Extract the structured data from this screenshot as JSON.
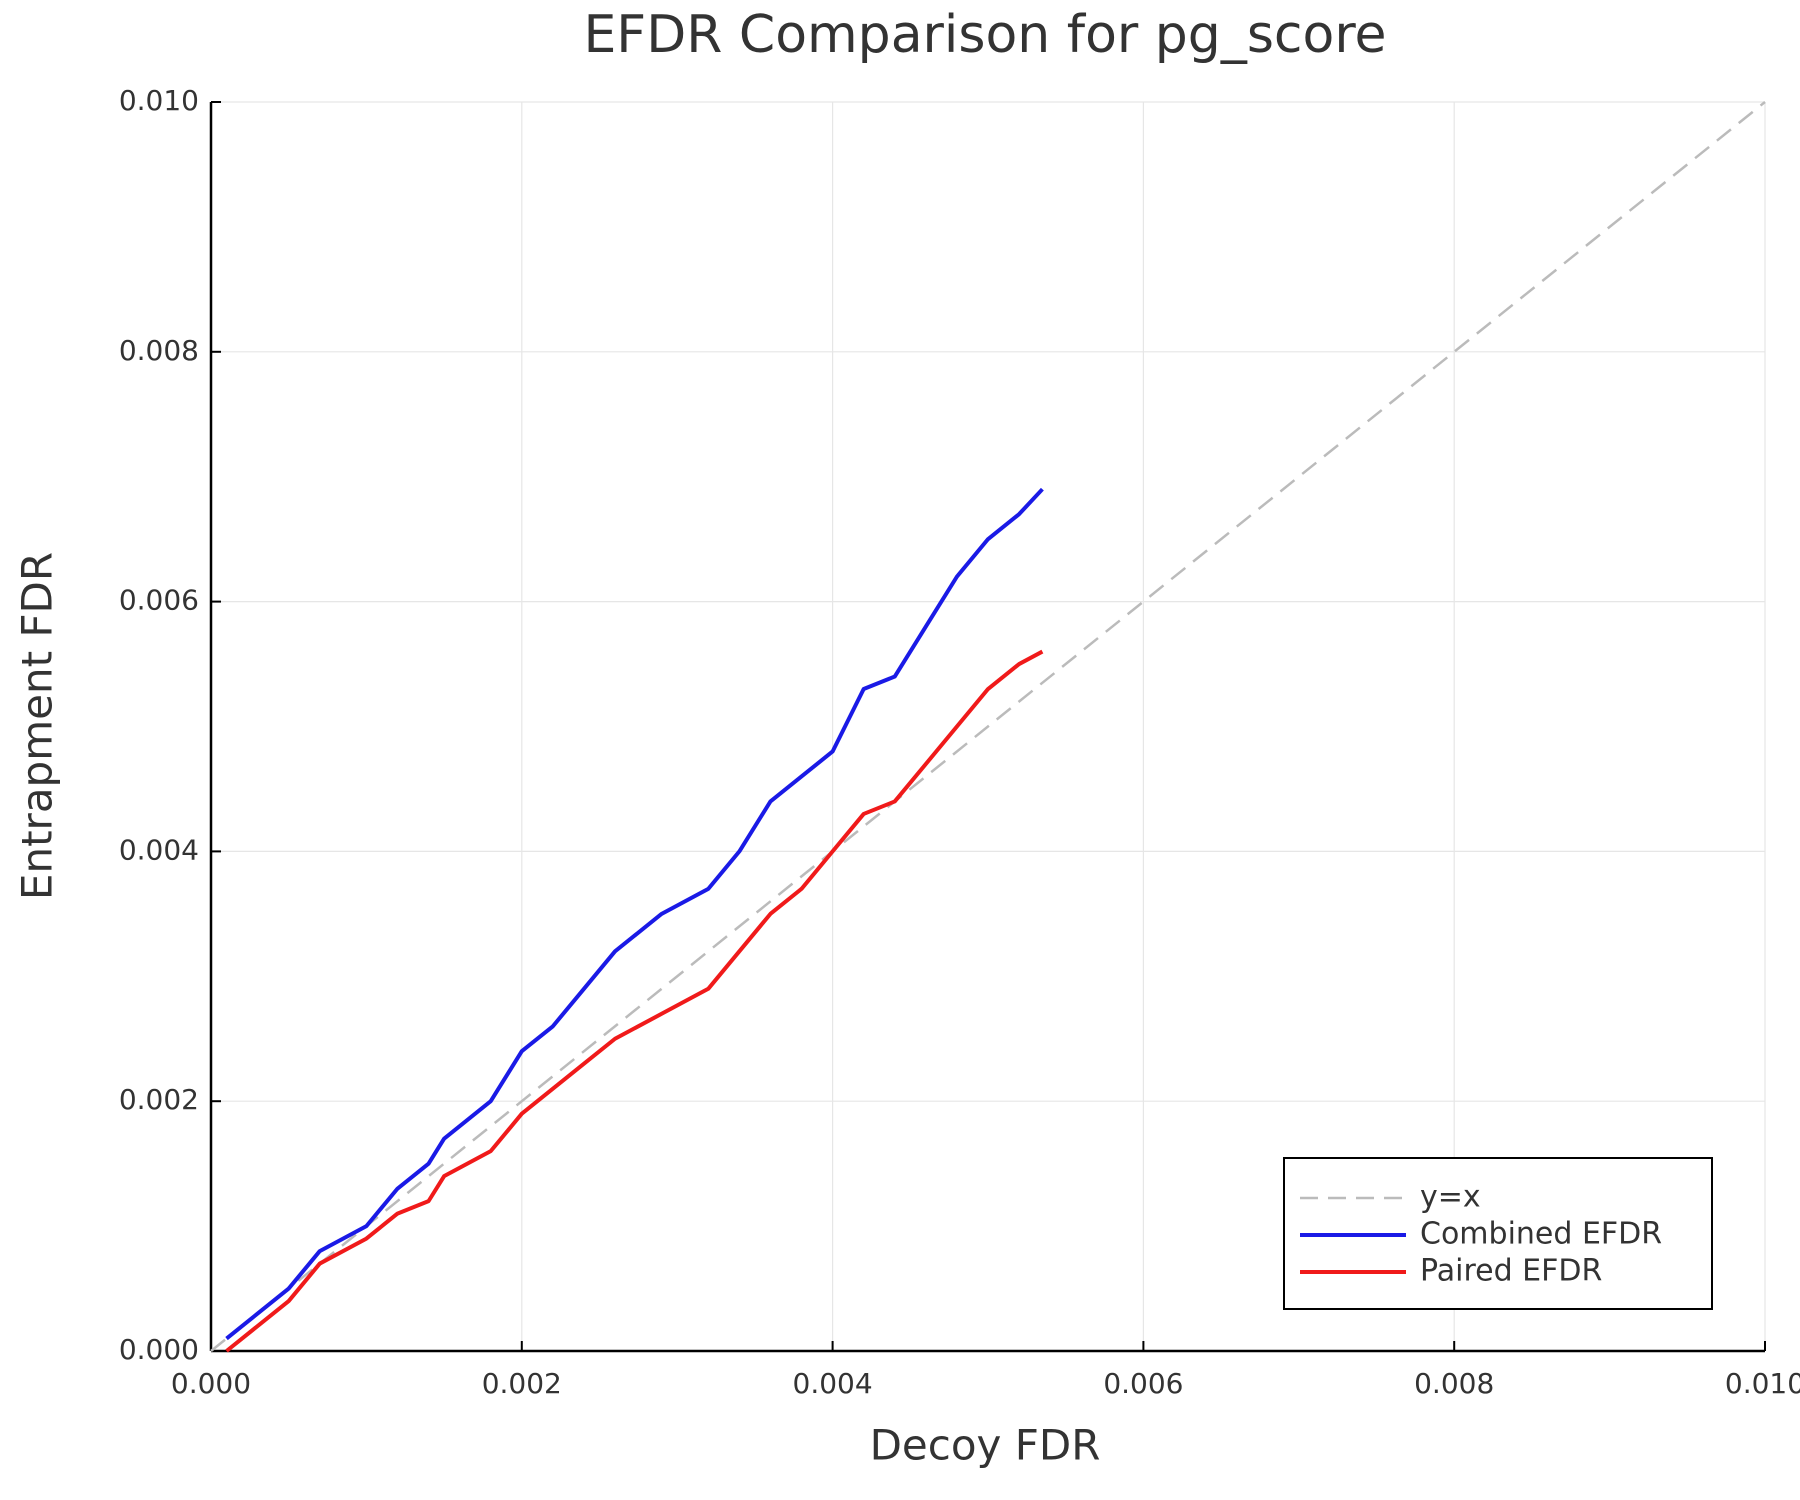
{
  "chart_data": {
    "type": "line",
    "title": "EFDR Comparison for pg_score",
    "x_label": "Decoy FDR",
    "y_label": "Entrapment FDR",
    "xlim": [
      0,
      0.01
    ],
    "ylim": [
      0,
      0.01
    ],
    "xticks": [
      {
        "value": 0,
        "label": "0.000"
      },
      {
        "value": 0.002,
        "label": "0.002"
      },
      {
        "value": 0.004,
        "label": "0.004"
      },
      {
        "value": 0.006,
        "label": "0.006"
      },
      {
        "value": 0.008,
        "label": "0.008"
      },
      {
        "value": 0.01,
        "label": "0.010"
      }
    ],
    "yticks": [
      {
        "value": 0,
        "label": "0.000"
      },
      {
        "value": 0.002,
        "label": "0.002"
      },
      {
        "value": 0.004,
        "label": "0.004"
      },
      {
        "value": 0.006,
        "label": "0.006"
      },
      {
        "value": 0.008,
        "label": "0.008"
      },
      {
        "value": 0.01,
        "label": "0.010"
      }
    ],
    "grid": true,
    "legend": "bottom right",
    "series": [
      {
        "name": "y=x",
        "color": "#bbbbbb",
        "dashed": true,
        "x": [
          0,
          0.01
        ],
        "values": [
          0,
          0.01
        ]
      },
      {
        "name": "Combined EFDR",
        "color": "#1a1ae6",
        "dashed": false,
        "x": [
          0.0001,
          0.0005,
          0.0007,
          0.001,
          0.0012,
          0.0014,
          0.0015,
          0.0018,
          0.002,
          0.0022,
          0.0024,
          0.0026,
          0.0029,
          0.0032,
          0.0034,
          0.0036,
          0.0038,
          0.004,
          0.0042,
          0.0044,
          0.0046,
          0.0048,
          0.005,
          0.0052,
          0.00535
        ],
        "values": [
          0.0001,
          0.0005,
          0.0008,
          0.001,
          0.0013,
          0.0015,
          0.0017,
          0.002,
          0.0024,
          0.0026,
          0.0029,
          0.0032,
          0.0035,
          0.0037,
          0.004,
          0.0044,
          0.0046,
          0.0048,
          0.0053,
          0.0054,
          0.0058,
          0.0062,
          0.0065,
          0.0067,
          0.0069
        ]
      },
      {
        "name": "Paired EFDR",
        "color": "#f01a1a",
        "dashed": false,
        "x": [
          0.0001,
          0.0005,
          0.0007,
          0.001,
          0.0012,
          0.0014,
          0.0015,
          0.0018,
          0.002,
          0.0022,
          0.0024,
          0.0026,
          0.0029,
          0.0032,
          0.0034,
          0.0036,
          0.0038,
          0.004,
          0.0042,
          0.0044,
          0.0046,
          0.0048,
          0.005,
          0.0052,
          0.00535
        ],
        "values": [
          0,
          0.0004,
          0.0007,
          0.0009,
          0.0011,
          0.0012,
          0.0014,
          0.0016,
          0.0019,
          0.0021,
          0.0023,
          0.0025,
          0.0027,
          0.0029,
          0.0032,
          0.0035,
          0.0037,
          0.004,
          0.0043,
          0.0044,
          0.0047,
          0.005,
          0.0053,
          0.0055,
          0.0056
        ]
      }
    ]
  }
}
